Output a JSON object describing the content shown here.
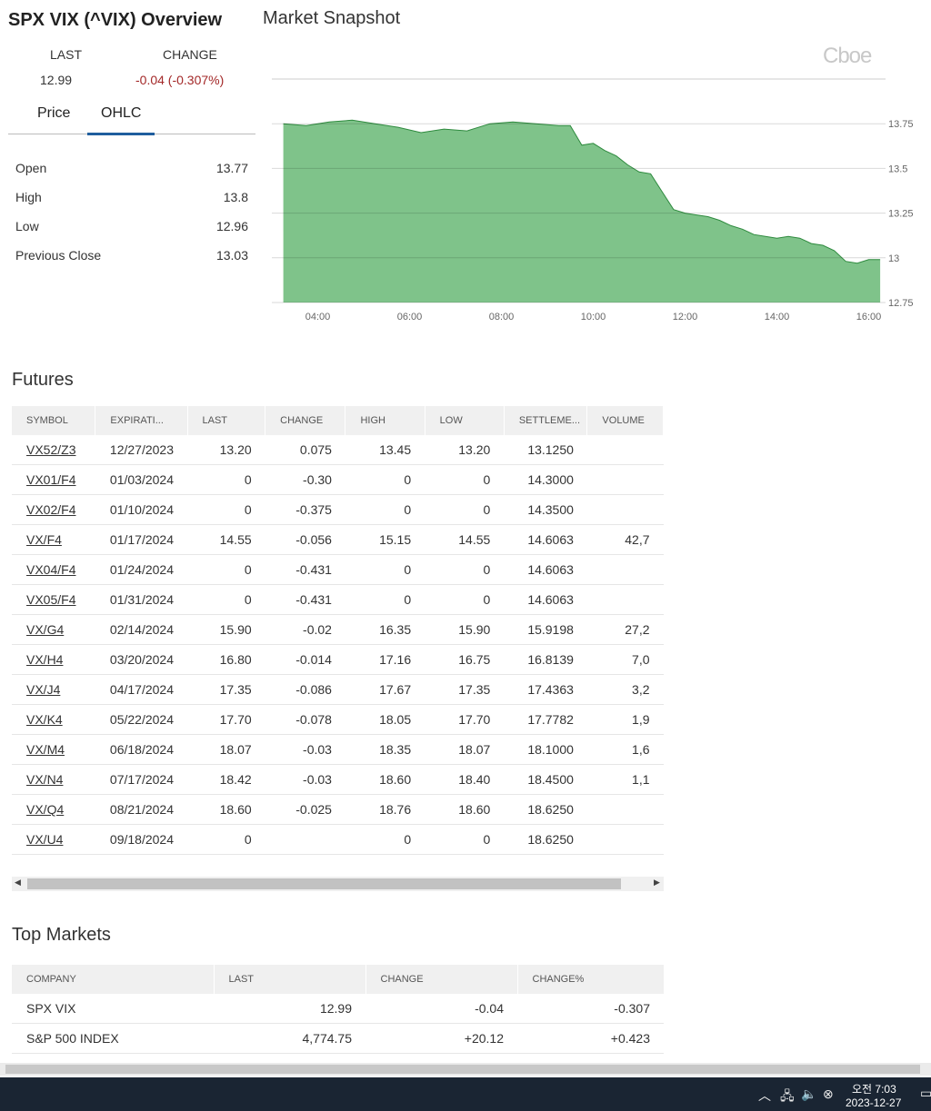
{
  "header": {
    "title": "SPX VIX (^VIX) Overview",
    "last_label": "LAST",
    "change_label": "CHANGE",
    "last_value": "12.99",
    "change_value": "-0.04 (-0.307%)"
  },
  "tabs": [
    {
      "label": "Price"
    },
    {
      "label": "OHLC"
    }
  ],
  "ohlc": [
    {
      "label": "Open",
      "value": "13.77"
    },
    {
      "label": "High",
      "value": "13.8"
    },
    {
      "label": "Low",
      "value": "12.96"
    },
    {
      "label": "Previous Close",
      "value": "13.03"
    }
  ],
  "snapshot": {
    "title": "Market Snapshot",
    "logo": "Cboe"
  },
  "chart_data": {
    "type": "area",
    "title": "",
    "xlabel": "",
    "ylabel": "",
    "x_ticks": [
      "04:00",
      "06:00",
      "08:00",
      "10:00",
      "12:00",
      "14:00",
      "16:00"
    ],
    "y_ticks": [
      "13.75",
      "13.5",
      "13.25",
      "13",
      "12.75"
    ],
    "ylim": [
      12.75,
      14.0
    ],
    "grid": true,
    "color": "#7fc38a",
    "line_color": "#2e8a3e",
    "series": [
      {
        "x": [
          "03:15",
          "03:45",
          "04:15",
          "04:45",
          "05:15",
          "05:45",
          "06:15",
          "06:45",
          "07:15",
          "07:45",
          "08:15",
          "08:45",
          "09:15",
          "09:30",
          "09:45",
          "10:00",
          "10:15",
          "10:30",
          "10:45",
          "11:00",
          "11:15",
          "11:30",
          "11:45",
          "12:00",
          "12:15",
          "12:30",
          "12:45",
          "13:00",
          "13:15",
          "13:30",
          "13:45",
          "14:00",
          "14:15",
          "14:30",
          "14:45",
          "15:00",
          "15:15",
          "15:30",
          "15:45",
          "16:00",
          "16:15"
        ],
        "y": [
          13.75,
          13.74,
          13.76,
          13.77,
          13.75,
          13.73,
          13.7,
          13.72,
          13.71,
          13.75,
          13.76,
          13.75,
          13.74,
          13.74,
          13.63,
          13.64,
          13.6,
          13.57,
          13.52,
          13.48,
          13.47,
          13.37,
          13.27,
          13.25,
          13.24,
          13.23,
          13.21,
          13.18,
          13.16,
          13.13,
          13.12,
          13.11,
          13.12,
          13.11,
          13.08,
          13.07,
          13.04,
          12.98,
          12.97,
          12.99,
          12.99
        ]
      }
    ]
  },
  "futures": {
    "title": "Futures",
    "columns": [
      "SYMBOL",
      "EXPIRATI...",
      "LAST",
      "CHANGE",
      "HIGH",
      "LOW",
      "SETTLEME...",
      "VOLUME"
    ],
    "rows": [
      [
        "VX52/Z3",
        "12/27/2023",
        "13.20",
        "0.075",
        "13.45",
        "13.20",
        "13.1250",
        ""
      ],
      [
        "VX01/F4",
        "01/03/2024",
        "0",
        "-0.30",
        "0",
        "0",
        "14.3000",
        ""
      ],
      [
        "VX02/F4",
        "01/10/2024",
        "0",
        "-0.375",
        "0",
        "0",
        "14.3500",
        ""
      ],
      [
        "VX/F4",
        "01/17/2024",
        "14.55",
        "-0.056",
        "15.15",
        "14.55",
        "14.6063",
        "42,7"
      ],
      [
        "VX04/F4",
        "01/24/2024",
        "0",
        "-0.431",
        "0",
        "0",
        "14.6063",
        ""
      ],
      [
        "VX05/F4",
        "01/31/2024",
        "0",
        "-0.431",
        "0",
        "0",
        "14.6063",
        ""
      ],
      [
        "VX/G4",
        "02/14/2024",
        "15.90",
        "-0.02",
        "16.35",
        "15.90",
        "15.9198",
        "27,2"
      ],
      [
        "VX/H4",
        "03/20/2024",
        "16.80",
        "-0.014",
        "17.16",
        "16.75",
        "16.8139",
        "7,0"
      ],
      [
        "VX/J4",
        "04/17/2024",
        "17.35",
        "-0.086",
        "17.67",
        "17.35",
        "17.4363",
        "3,2"
      ],
      [
        "VX/K4",
        "05/22/2024",
        "17.70",
        "-0.078",
        "18.05",
        "17.70",
        "17.7782",
        "1,9"
      ],
      [
        "VX/M4",
        "06/18/2024",
        "18.07",
        "-0.03",
        "18.35",
        "18.07",
        "18.1000",
        "1,6"
      ],
      [
        "VX/N4",
        "07/17/2024",
        "18.42",
        "-0.03",
        "18.60",
        "18.40",
        "18.4500",
        "1,1"
      ],
      [
        "VX/Q4",
        "08/21/2024",
        "18.60",
        "-0.025",
        "18.76",
        "18.60",
        "18.6250",
        ""
      ],
      [
        "VX/U4",
        "09/18/2024",
        "0",
        "",
        "0",
        "0",
        "18.6250",
        ""
      ]
    ]
  },
  "top_markets": {
    "title": "Top Markets",
    "columns": [
      "COMPANY",
      "LAST",
      "CHANGE",
      "CHANGE%"
    ],
    "rows": [
      [
        "SPX VIX",
        "12.99",
        "-0.04",
        "-0.307"
      ],
      [
        "S&P 500 INDEX",
        "4,774.75",
        "+20.12",
        "+0.423"
      ]
    ]
  },
  "taskbar": {
    "time": "오전 7:03",
    "date": "2023-12-27"
  },
  "colors": {
    "negative": "#a32828",
    "positive": "#2a8a3a",
    "tab_accent": "#1f5e9e",
    "taskbar": "#1a2533"
  }
}
